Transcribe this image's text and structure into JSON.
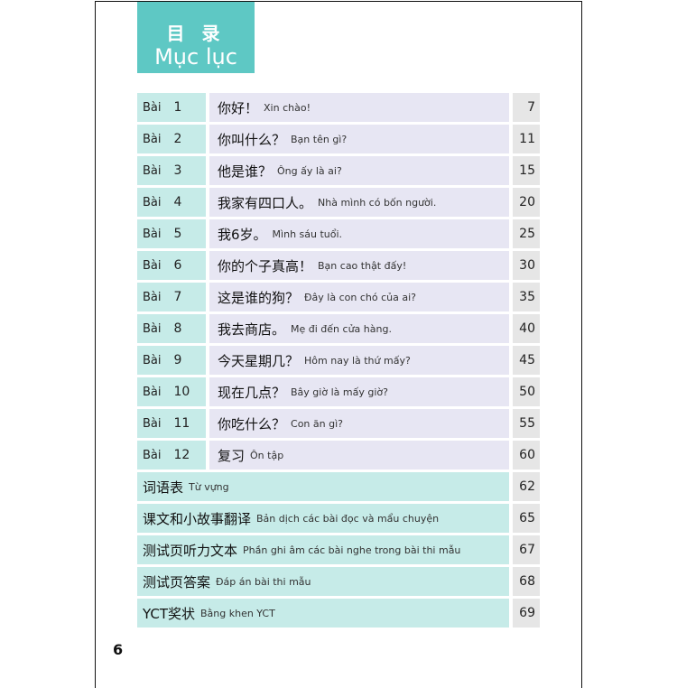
{
  "header": {
    "title_zh": "目 录",
    "title_vi": "Mục lục"
  },
  "lessons": [
    {
      "label": "Bài",
      "num": "1",
      "zh": "你好！",
      "vi": "Xin chào!",
      "page": "7"
    },
    {
      "label": "Bài",
      "num": "2",
      "zh": "你叫什么？",
      "vi": "Bạn tên gì?",
      "page": "11"
    },
    {
      "label": "Bài",
      "num": "3",
      "zh": "他是谁？",
      "vi": "Ông ấy là ai?",
      "page": "15"
    },
    {
      "label": "Bài",
      "num": "4",
      "zh": "我家有四口人。",
      "vi": "Nhà mình có bốn người.",
      "page": "20"
    },
    {
      "label": "Bài",
      "num": "5",
      "zh": "我6岁。",
      "vi": "Mình sáu tuổi.",
      "page": "25"
    },
    {
      "label": "Bài",
      "num": "6",
      "zh": "你的个子真高！",
      "vi": "Bạn cao thật đấy!",
      "page": "30"
    },
    {
      "label": "Bài",
      "num": "7",
      "zh": "这是谁的狗？",
      "vi": "Đây là con chó của ai?",
      "page": "35"
    },
    {
      "label": "Bài",
      "num": "8",
      "zh": "我去商店。",
      "vi": "Mẹ đi đến cửa hàng.",
      "page": "40"
    },
    {
      "label": "Bài",
      "num": "9",
      "zh": "今天星期几？",
      "vi": "Hôm nay là thứ mấy?",
      "page": "45"
    },
    {
      "label": "Bài",
      "num": "10",
      "zh": "现在几点？",
      "vi": "Bây giờ là mấy giờ?",
      "page": "50"
    },
    {
      "label": "Bài",
      "num": "11",
      "zh": "你吃什么？",
      "vi": "Con ăn gì?",
      "page": "55"
    },
    {
      "label": "Bài",
      "num": "12",
      "zh": "复习",
      "vi": "Ôn tập",
      "page": "60"
    }
  ],
  "appendices": [
    {
      "zh": "词语表",
      "vi": "Từ vựng",
      "page": "62"
    },
    {
      "zh": "课文和小故事翻译",
      "vi": "Bản dịch các bài đọc và mẩu chuyện",
      "page": "65"
    },
    {
      "zh": "测试页听力文本",
      "vi": "Phần ghi âm các bài nghe trong bài thi mẫu",
      "page": "67"
    },
    {
      "zh": "测试页答案",
      "vi": "Đáp án bài thi mẫu",
      "page": "68"
    },
    {
      "zh": "YCT奖状",
      "vi": "Bằng khen YCT",
      "page": "69"
    }
  ],
  "page_number": "6",
  "colors": {
    "header": "#5ec8c4",
    "number_cell": "#c6ebe8",
    "title_cell": "#e7e6f3",
    "page_cell": "#e6e6e6"
  }
}
